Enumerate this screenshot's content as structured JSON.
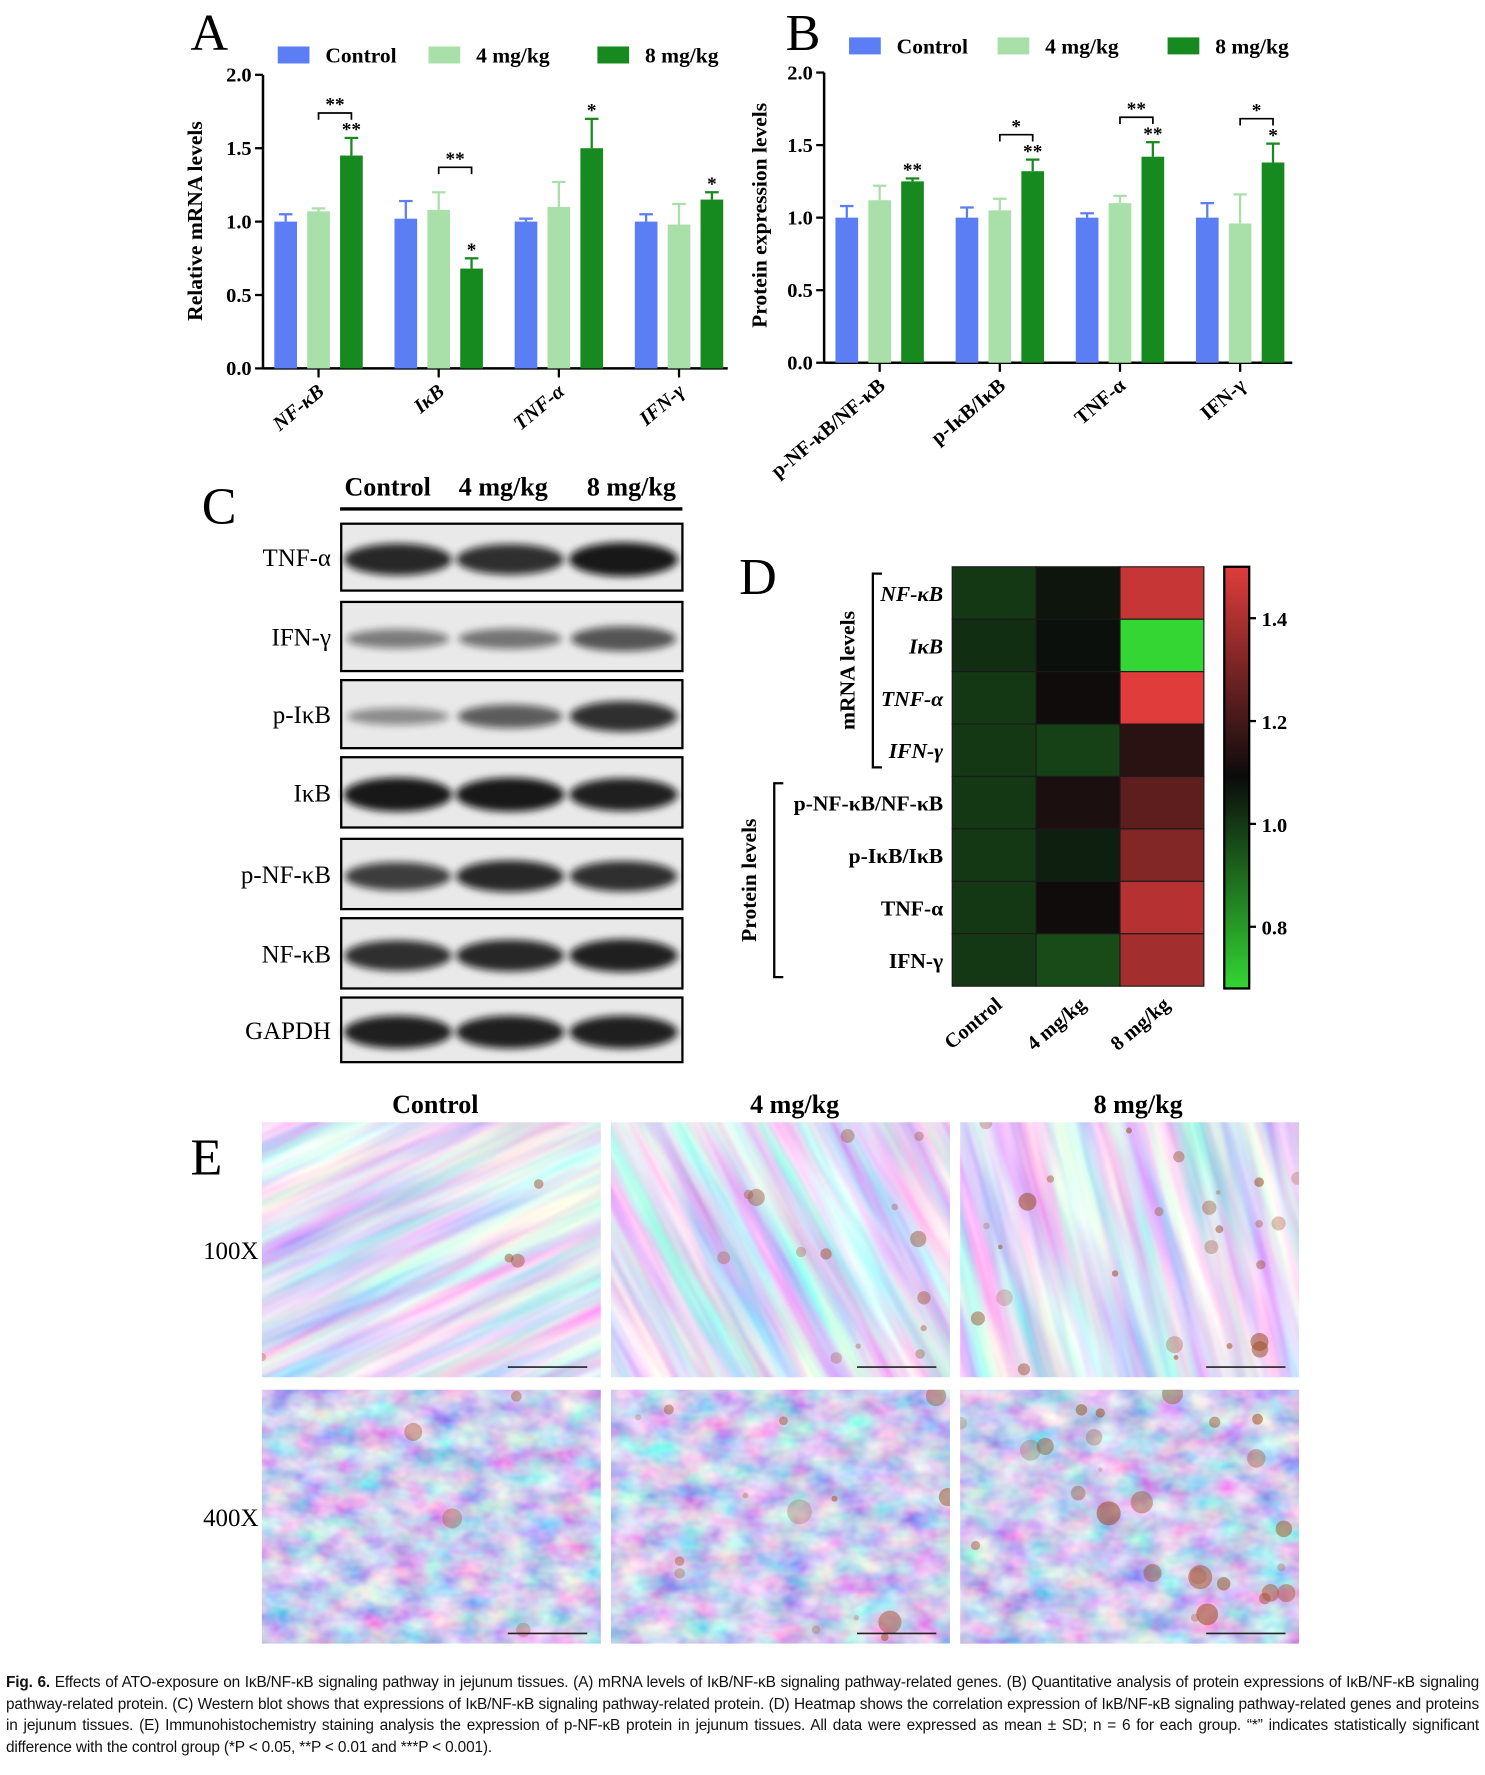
{
  "chart_data": [
    {
      "type": "bar",
      "panel": "A",
      "ylabel": "Relative mRNA levels",
      "categories": [
        "NF-κB",
        "IκB",
        "TNF-α",
        "IFN-γ"
      ],
      "series": [
        {
          "name": "Control",
          "color": "#5b7ef5",
          "values": [
            1.0,
            1.02,
            1.0,
            1.0
          ],
          "errors": [
            0.05,
            0.12,
            0.02,
            0.05
          ]
        },
        {
          "name": "4 mg/kg",
          "color": "#a9e0a9",
          "values": [
            1.07,
            1.08,
            1.1,
            0.98
          ],
          "errors": [
            0.02,
            0.12,
            0.17,
            0.14
          ]
        },
        {
          "name": "8 mg/kg",
          "color": "#16891f",
          "values": [
            1.45,
            0.68,
            1.5,
            1.15
          ],
          "errors": [
            0.12,
            0.07,
            0.2,
            0.05
          ],
          "annotations": [
            "**",
            "*",
            "*",
            "*"
          ]
        }
      ],
      "brackets": [
        "**",
        "**",
        null,
        null
      ],
      "ylim": [
        0,
        2
      ],
      "yticks": [
        {
          "value": 0,
          "label": "0.0"
        },
        {
          "value": 0.5,
          "label": "0.5"
        },
        {
          "value": 1,
          "label": "1.0"
        },
        {
          "value": 1.5,
          "label": "1.5"
        },
        {
          "value": 2,
          "label": "2.0"
        }
      ]
    },
    {
      "type": "bar",
      "panel": "B",
      "ylabel": "Protein expression levels",
      "categories": [
        "p-NF-κB/NF-κB",
        "p-IκB/IκB",
        "TNF-α",
        "IFN-γ"
      ],
      "series": [
        {
          "name": "Control",
          "color": "#5b7ef5",
          "values": [
            1.0,
            1.0,
            1.0,
            1.0
          ],
          "errors": [
            0.08,
            0.07,
            0.03,
            0.1
          ]
        },
        {
          "name": "4 mg/kg",
          "color": "#a9e0a9",
          "values": [
            1.12,
            1.05,
            1.1,
            0.96
          ],
          "errors": [
            0.1,
            0.08,
            0.05,
            0.2
          ]
        },
        {
          "name": "8 mg/kg",
          "color": "#16891f",
          "values": [
            1.25,
            1.32,
            1.42,
            1.38
          ],
          "errors": [
            0.02,
            0.08,
            0.1,
            0.13
          ],
          "annotations": [
            "**",
            "**",
            "**",
            "*"
          ]
        }
      ],
      "brackets": [
        null,
        "*",
        "**",
        "*"
      ],
      "ylim": [
        0,
        2
      ],
      "yticks": [
        {
          "value": 0,
          "label": "0.0"
        },
        {
          "value": 0.5,
          "label": "0.5"
        },
        {
          "value": 1,
          "label": "1.0"
        },
        {
          "value": 1.5,
          "label": "1.5"
        },
        {
          "value": 2,
          "label": "2.0"
        }
      ]
    },
    {
      "type": "heatmap",
      "panel": "D",
      "columns": [
        "Control",
        "4 mg/kg",
        "8 mg/kg"
      ],
      "row_groups": [
        {
          "label": "mRNA levels",
          "rows": [
            "NF-κB",
            "IκB",
            "TNF-α",
            "IFN-γ"
          ],
          "values": [
            [
              1.0,
              1.07,
              1.45
            ],
            [
              1.02,
              1.08,
              0.68
            ],
            [
              1.0,
              1.1,
              1.5
            ],
            [
              1.0,
              0.98,
              1.15
            ]
          ]
        },
        {
          "label": "Protein levels",
          "rows": [
            "p-NF-κB/NF-κB",
            "p-IκB/IκB",
            "TNF-α",
            "IFN-γ"
          ],
          "values": [
            [
              1.0,
              1.12,
              1.25
            ],
            [
              1.0,
              1.05,
              1.32
            ],
            [
              1.0,
              1.1,
              1.42
            ],
            [
              1.0,
              0.96,
              1.38
            ]
          ]
        }
      ],
      "zlim": [
        0.68,
        1.5
      ],
      "zticks": [
        0.8,
        {
          "value": 1,
          "label": "1.0"
        },
        1.2,
        1.4
      ],
      "colorscale": [
        {
          "value": 0.68,
          "color": "#33d633"
        },
        {
          "value": 1.09,
          "color": "#0b0b0b"
        },
        {
          "value": 1.5,
          "color": "#e03c3c"
        }
      ]
    }
  ],
  "western_blot": {
    "panel": "C",
    "columns": [
      "Control",
      "4 mg/kg",
      "8 mg/kg"
    ],
    "rows": [
      "TNF-α",
      "IFN-γ",
      "p-IκB",
      "IκB",
      "p-NF-κB",
      "NF-κB",
      "GAPDH"
    ]
  },
  "ihc": {
    "panel": "E",
    "columns": [
      "Control",
      "4 mg/kg",
      "8 mg/kg"
    ],
    "rows": [
      "100X",
      "400X"
    ]
  },
  "caption": {
    "label": "Fig. 6.",
    "text": "Effects of ATO-exposure on IκB/NF-κB signaling pathway in jejunum tissues. (A) mRNA levels of IκB/NF-κB signaling pathway-related genes. (B) Quantitative analysis of protein expressions of IκB/NF-κB signaling pathway-related protein. (C) Western blot shows that expressions of IκB/NF-κB signaling pathway-related protein. (D) Heatmap shows the correlation expression of IκB/NF-κB signaling pathway-related genes and proteins in jejunum tissues. (E) Immunohistochemistry staining analysis the expression of p-NF-κB protein in jejunum tissues. All data were expressed as mean ± SD; n = 6 for each group. “*” indicates statistically significant difference with the control group (*P < 0.05, **P < 0.01 and ***P < 0.001)."
  }
}
